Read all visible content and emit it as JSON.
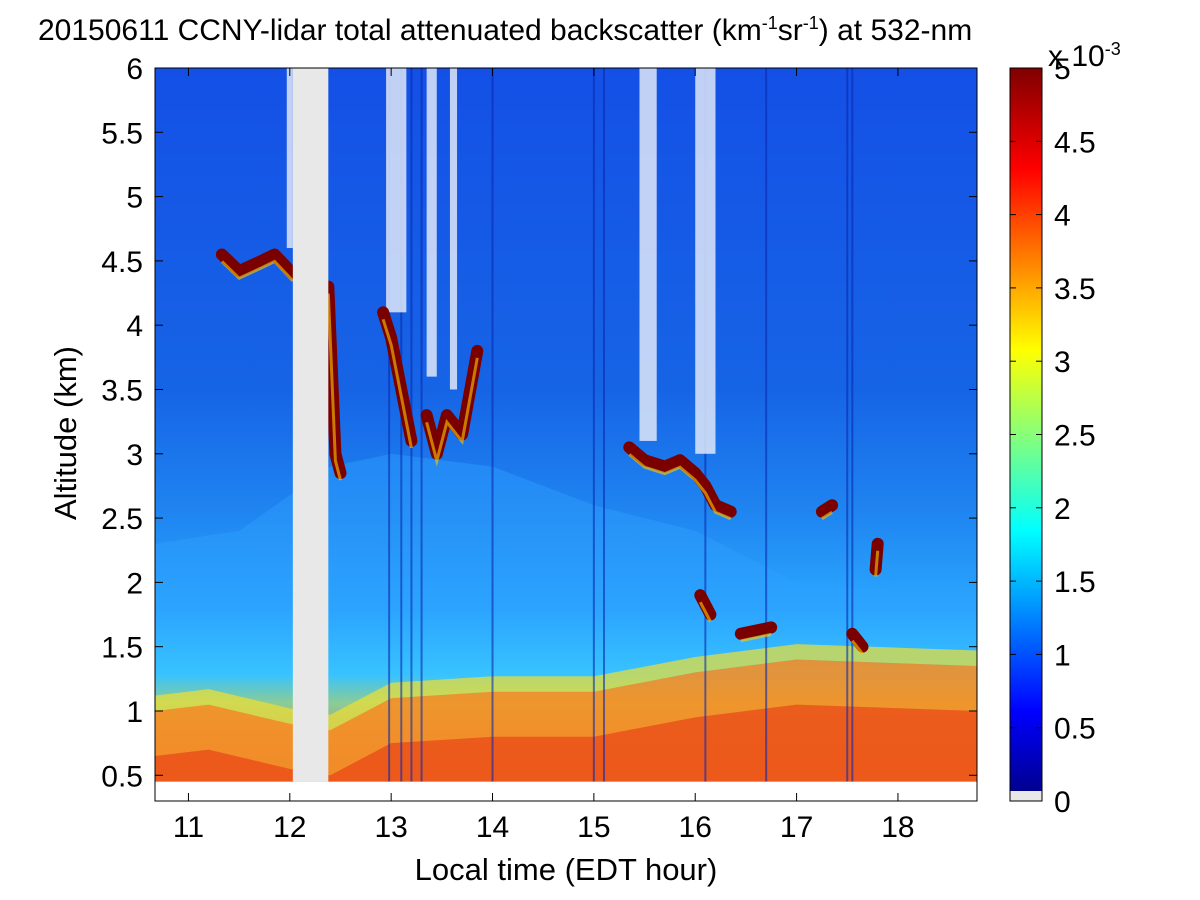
{
  "figure": {
    "title_main": "20150611 CCNY-lidar total attenuated backscatter (km",
    "title_sup1": "-1",
    "title_mid": "sr",
    "title_sup2": "-1",
    "title_end": ") at 532-nm",
    "xlabel": "Local time (EDT hour)",
    "ylabel": "Altitude (km)",
    "colorbar_multiplier_base": "x 10",
    "colorbar_multiplier_exp": "-3"
  },
  "colors": {
    "jet": [
      "#00008f",
      "#0000ff",
      "#00ffff",
      "#ffff00",
      "#ff0000",
      "#800000"
    ],
    "no_data": "#e8e8e8",
    "background_blue": "#1450e6"
  },
  "chart_data": {
    "type": "heatmap",
    "x_range": [
      10.67,
      18.78
    ],
    "y_range": [
      0.3,
      6.0
    ],
    "x_ticks": [
      11,
      12,
      13,
      14,
      15,
      16,
      17,
      18
    ],
    "x_tick_labels": [
      "11",
      "12",
      "13",
      "14",
      "15",
      "16",
      "17",
      "18"
    ],
    "y_ticks": [
      0.5,
      1,
      1.5,
      2,
      2.5,
      3,
      3.5,
      4,
      4.5,
      5,
      5.5,
      6
    ],
    "y_tick_labels": [
      "0.5",
      "1",
      "1.5",
      "2",
      "2.5",
      "3",
      "3.5",
      "4",
      "4.5",
      "5",
      "5.5",
      "6"
    ],
    "data_bottom_altitude": 0.45,
    "colorbar_range": [
      0,
      5
    ],
    "colorbar_ticks": [
      0,
      0.5,
      1,
      1.5,
      2,
      2.5,
      3,
      3.5,
      4,
      4.5,
      5
    ],
    "colorbar_tick_labels": [
      "0",
      "0.5",
      "1",
      "1.5",
      "2",
      "2.5",
      "3",
      "3.5",
      "4",
      "4.5",
      "5"
    ],
    "no_data_time_intervals": [
      [
        12.03,
        12.38
      ]
    ],
    "noisy_upper_columns": [
      [
        11.97,
        12.03,
        4.6
      ],
      [
        12.95,
        13.15,
        4.1
      ],
      [
        13.35,
        13.45,
        3.6
      ],
      [
        13.58,
        13.65,
        3.5
      ],
      [
        15.45,
        15.62,
        3.1
      ],
      [
        16.0,
        16.2,
        3.0
      ]
    ],
    "boundary_layer_top": [
      [
        10.67,
        1.0
      ],
      [
        11.2,
        1.05
      ],
      [
        12.0,
        0.9
      ],
      [
        12.4,
        0.85
      ],
      [
        13.0,
        1.1
      ],
      [
        14.0,
        1.15
      ],
      [
        15.0,
        1.15
      ],
      [
        16.0,
        1.3
      ],
      [
        17.0,
        1.4
      ],
      [
        18.78,
        1.35
      ]
    ],
    "residual_layer_top": [
      [
        10.67,
        2.3
      ],
      [
        11.5,
        2.4
      ],
      [
        12.4,
        2.9
      ],
      [
        13.0,
        3.0
      ],
      [
        14.0,
        2.9
      ],
      [
        15.0,
        2.6
      ],
      [
        16.0,
        2.4
      ],
      [
        17.0,
        2.0
      ],
      [
        18.78,
        1.9
      ]
    ],
    "cloud_segments": [
      [
        [
          11.33,
          4.55
        ],
        [
          11.5,
          4.42
        ],
        [
          11.72,
          4.5
        ],
        [
          11.85,
          4.55
        ],
        [
          12.03,
          4.4
        ]
      ],
      [
        [
          12.38,
          4.3
        ],
        [
          12.45,
          3.0
        ],
        [
          12.5,
          2.85
        ]
      ],
      [
        [
          12.92,
          4.1
        ],
        [
          13.0,
          3.9
        ],
        [
          13.1,
          3.5
        ],
        [
          13.2,
          3.1
        ]
      ],
      [
        [
          13.35,
          3.3
        ],
        [
          13.45,
          3.0
        ],
        [
          13.55,
          3.3
        ],
        [
          13.7,
          3.15
        ],
        [
          13.85,
          3.8
        ]
      ],
      [
        [
          15.35,
          3.05
        ],
        [
          15.5,
          2.95
        ],
        [
          15.7,
          2.9
        ],
        [
          15.85,
          2.95
        ],
        [
          16.0,
          2.85
        ],
        [
          16.1,
          2.75
        ],
        [
          16.2,
          2.6
        ],
        [
          16.35,
          2.55
        ]
      ],
      [
        [
          16.05,
          1.9
        ],
        [
          16.15,
          1.75
        ]
      ],
      [
        [
          16.45,
          1.6
        ],
        [
          16.75,
          1.65
        ]
      ],
      [
        [
          17.25,
          2.55
        ],
        [
          17.35,
          2.6
        ]
      ],
      [
        [
          17.55,
          1.6
        ],
        [
          17.65,
          1.5
        ]
      ],
      [
        [
          17.78,
          2.1
        ],
        [
          17.8,
          2.3
        ]
      ]
    ],
    "vertical_streaks": [
      12.98,
      13.1,
      13.2,
      13.3,
      14.0,
      15.0,
      15.1,
      16.1,
      16.7,
      17.5,
      17.55
    ]
  }
}
